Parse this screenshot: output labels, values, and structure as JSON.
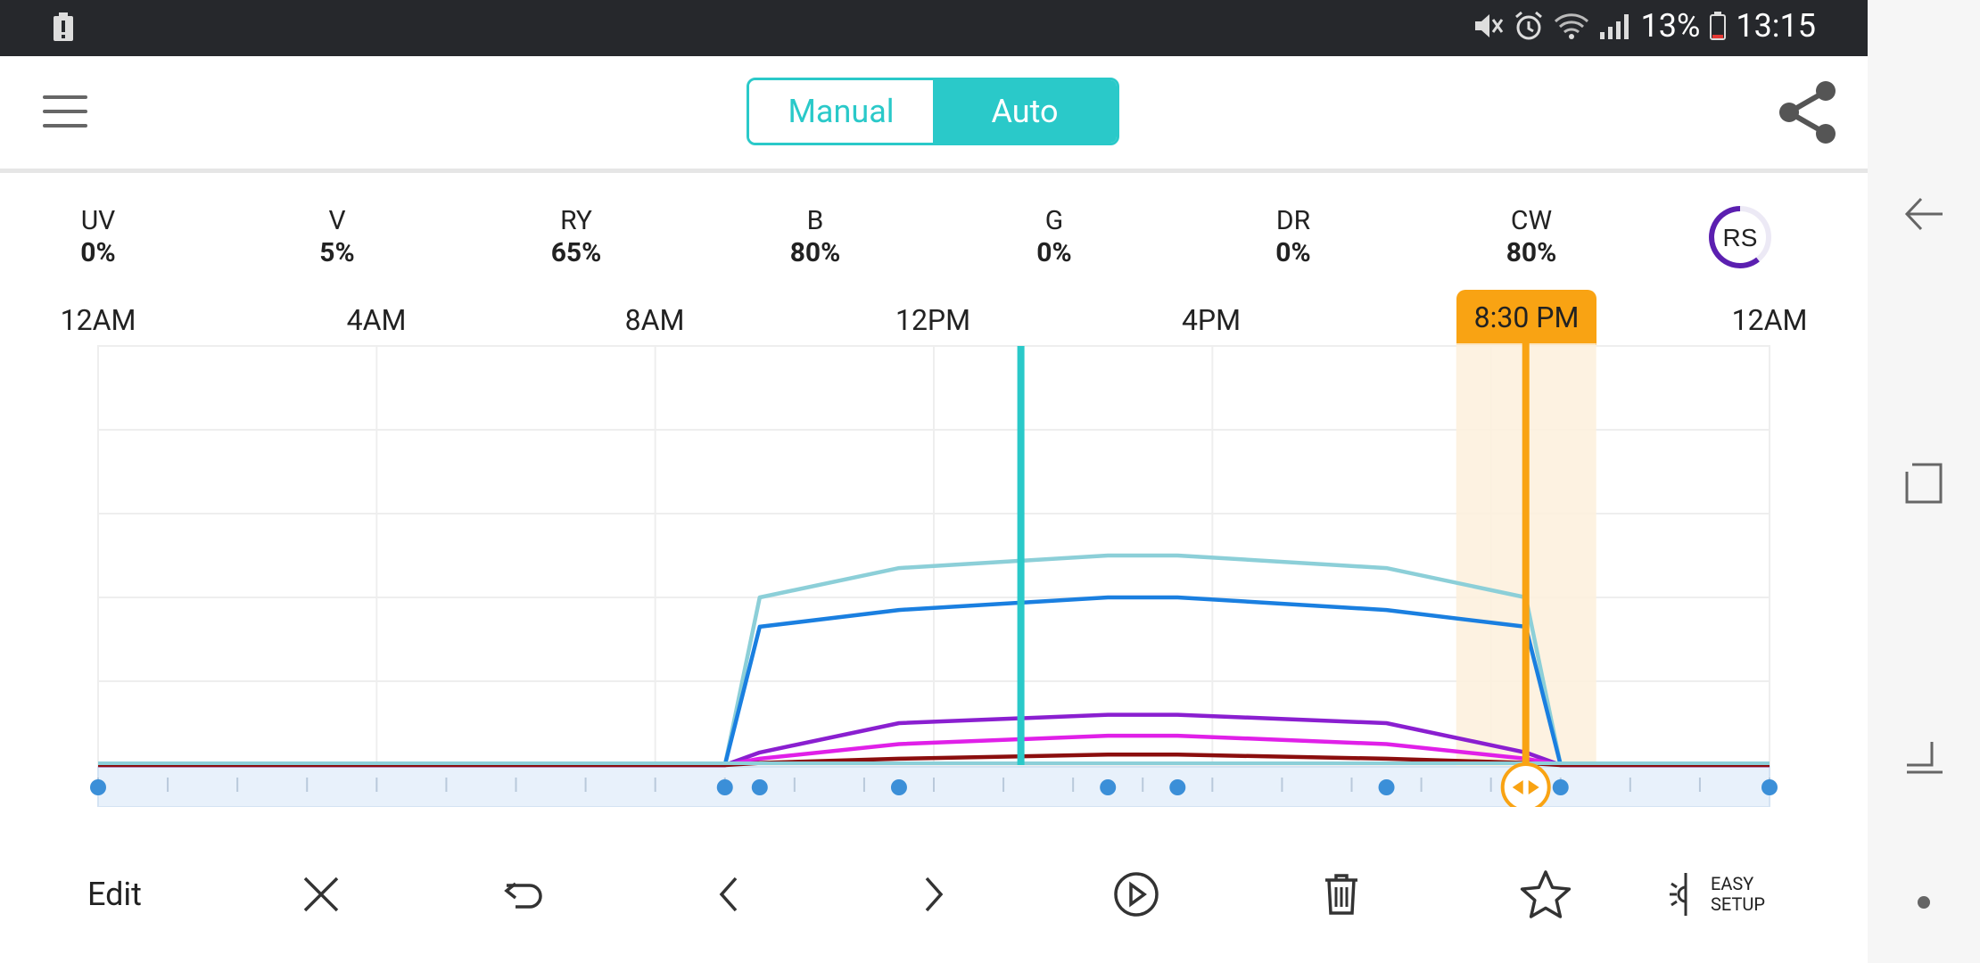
{
  "status_bar": {
    "battery_percent": "13%",
    "time": "13:15",
    "icons": [
      "battery-alert-icon",
      "mute-icon",
      "alarm-icon",
      "wifi-icon",
      "signal-icon",
      "battery-icon"
    ]
  },
  "app_bar": {
    "mode_manual": "Manual",
    "mode_auto": "Auto",
    "selected_mode": "Auto",
    "menu_icon": "hamburger-icon",
    "share_icon": "share-icon"
  },
  "channels": [
    {
      "label": "UV",
      "value": "0%"
    },
    {
      "label": "V",
      "value": "5%"
    },
    {
      "label": "RY",
      "value": "65%"
    },
    {
      "label": "B",
      "value": "80%"
    },
    {
      "label": "G",
      "value": "0%"
    },
    {
      "label": "DR",
      "value": "0%"
    },
    {
      "label": "CW",
      "value": "80%"
    }
  ],
  "rs_badge": "RS",
  "time_axis": [
    "12AM",
    "4AM",
    "8AM",
    "12PM",
    "4PM",
    "8:30 PM",
    "12AM"
  ],
  "cursor_time": "8:30 PM",
  "colors": {
    "accent": "#2ac9c9",
    "cursor": "#f9a313",
    "point": "#3b8fd8"
  },
  "chart_data": {
    "type": "line",
    "x_unit": "hours",
    "xlim": [
      0,
      24
    ],
    "ylim": [
      0,
      100
    ],
    "current_time_marker": 13.25,
    "selected_cursor": 20.5,
    "control_points_x": [
      0,
      9,
      9.5,
      11.5,
      14.5,
      15.5,
      18.5,
      20.5,
      21,
      24
    ],
    "series": [
      {
        "color": "#8ccfd8",
        "points": [
          [
            0,
            0
          ],
          [
            9,
            0
          ],
          [
            9.5,
            40
          ],
          [
            11.5,
            47
          ],
          [
            14.5,
            50
          ],
          [
            15.5,
            50
          ],
          [
            18.5,
            47
          ],
          [
            20.5,
            40
          ],
          [
            21,
            0
          ],
          [
            24,
            0
          ]
        ]
      },
      {
        "color": "#1a7fe0",
        "points": [
          [
            0,
            0
          ],
          [
            9,
            0
          ],
          [
            9.5,
            33
          ],
          [
            11.5,
            37
          ],
          [
            14.5,
            40
          ],
          [
            15.5,
            40
          ],
          [
            18.5,
            37
          ],
          [
            20.5,
            33
          ],
          [
            21,
            0
          ],
          [
            24,
            0
          ]
        ]
      },
      {
        "color": "#8a1fd0",
        "points": [
          [
            0,
            0
          ],
          [
            9,
            0
          ],
          [
            9.5,
            3
          ],
          [
            11.5,
            10
          ],
          [
            14.5,
            12
          ],
          [
            15.5,
            12
          ],
          [
            18.5,
            10
          ],
          [
            20.5,
            3
          ],
          [
            21,
            0
          ],
          [
            24,
            0
          ]
        ]
      },
      {
        "color": "#e020e8",
        "points": [
          [
            0,
            0
          ],
          [
            9,
            0
          ],
          [
            9.5,
            1.5
          ],
          [
            11.5,
            5
          ],
          [
            14.5,
            7
          ],
          [
            15.5,
            7
          ],
          [
            18.5,
            5
          ],
          [
            20.5,
            1.5
          ],
          [
            21,
            0
          ],
          [
            24,
            0
          ]
        ]
      },
      {
        "color": "#8b0e0e",
        "points": [
          [
            0,
            0
          ],
          [
            9,
            0
          ],
          [
            9.5,
            0.5
          ],
          [
            11.5,
            1.5
          ],
          [
            14.5,
            2.5
          ],
          [
            15.5,
            2.5
          ],
          [
            18.5,
            1.5
          ],
          [
            20.5,
            0.5
          ],
          [
            21,
            0
          ],
          [
            24,
            0
          ]
        ]
      }
    ]
  },
  "toolbar": {
    "edit_label": "Edit",
    "icons": [
      "close-icon",
      "undo-icon",
      "previous-icon",
      "next-icon",
      "play-icon",
      "delete-icon",
      "favorite-icon"
    ],
    "easy_setup_line1": "EASY",
    "easy_setup_line2": "SETUP"
  },
  "nav": [
    "back-icon",
    "recents-icon",
    "home-icon",
    "dot-icon"
  ]
}
